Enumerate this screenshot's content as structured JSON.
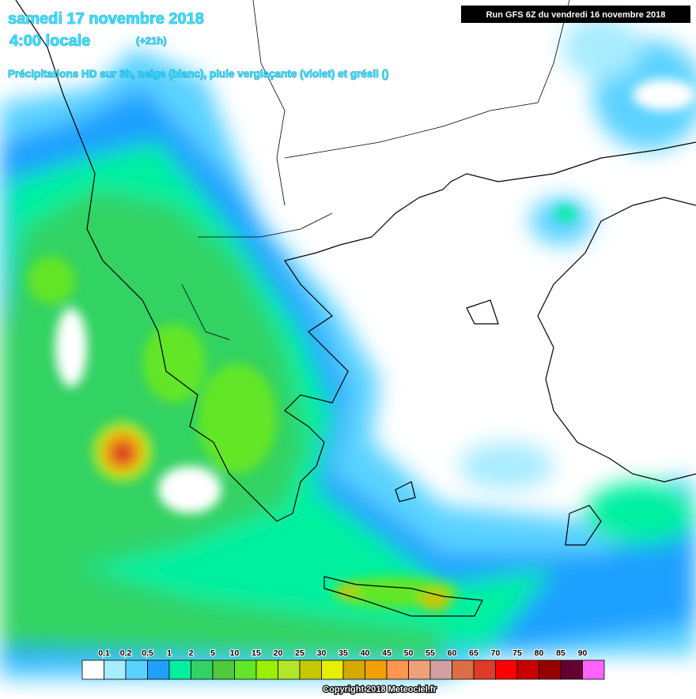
{
  "header": {
    "title": "samedi 17 novembre 2018",
    "time": "4:00 locale",
    "offset": "(+21h)",
    "subtitle": "Précipitations HD sur 3h, neige (blanc), pluie verglaçante (violet) et grésil ()",
    "run": "Run GFS 6Z du vendredi 16 novembre 2018"
  },
  "legend": {
    "labels": [
      "0,1",
      "0,2",
      "0,5",
      "1",
      "2",
      "5",
      "10",
      "15",
      "20",
      "25",
      "30",
      "35",
      "40",
      "45",
      "50",
      "55",
      "60",
      "65",
      "70",
      "75",
      "80",
      "85",
      "90"
    ],
    "colors": [
      "#ffffff",
      "#a8ecff",
      "#5ad2ff",
      "#1ea0ff",
      "#00f0a0",
      "#32d264",
      "#50c83c",
      "#64e628",
      "#9bf000",
      "#b4e628",
      "#c8c800",
      "#e6f000",
      "#d2aa00",
      "#f0a000",
      "#ff9650",
      "#f0a078",
      "#d2a0a0",
      "#dc6e46",
      "#dc3c28",
      "#ff0000",
      "#c80000",
      "#960000",
      "#640032",
      "#ff64ff"
    ]
  },
  "footer": {
    "copyright": "Copyright 2018 Meteociel.fr"
  }
}
